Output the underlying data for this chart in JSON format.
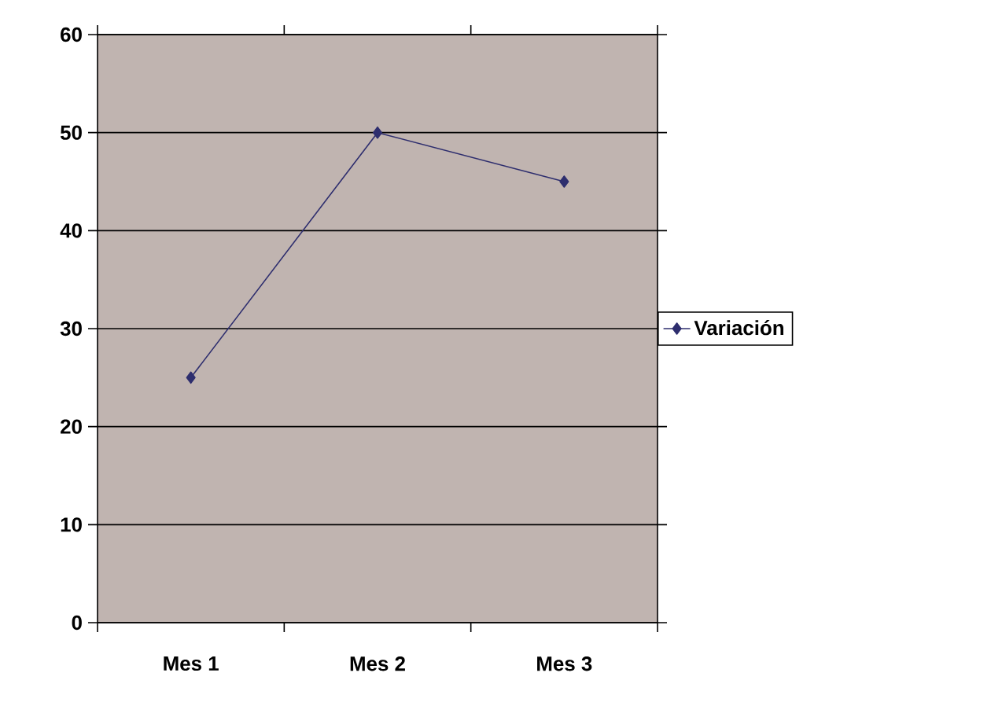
{
  "chart_data": {
    "type": "line",
    "categories": [
      "Mes 1",
      "Mes 2",
      "Mes 3"
    ],
    "series": [
      {
        "name": "Variación",
        "color": "#2e2e6e",
        "values": [
          25,
          50,
          45
        ]
      }
    ],
    "ylim": [
      0,
      60
    ],
    "yticks": [
      0,
      10,
      20,
      30,
      40,
      50,
      60
    ],
    "grid": "y",
    "legend": "right",
    "marker": "diamond",
    "line_style": "solid"
  }
}
